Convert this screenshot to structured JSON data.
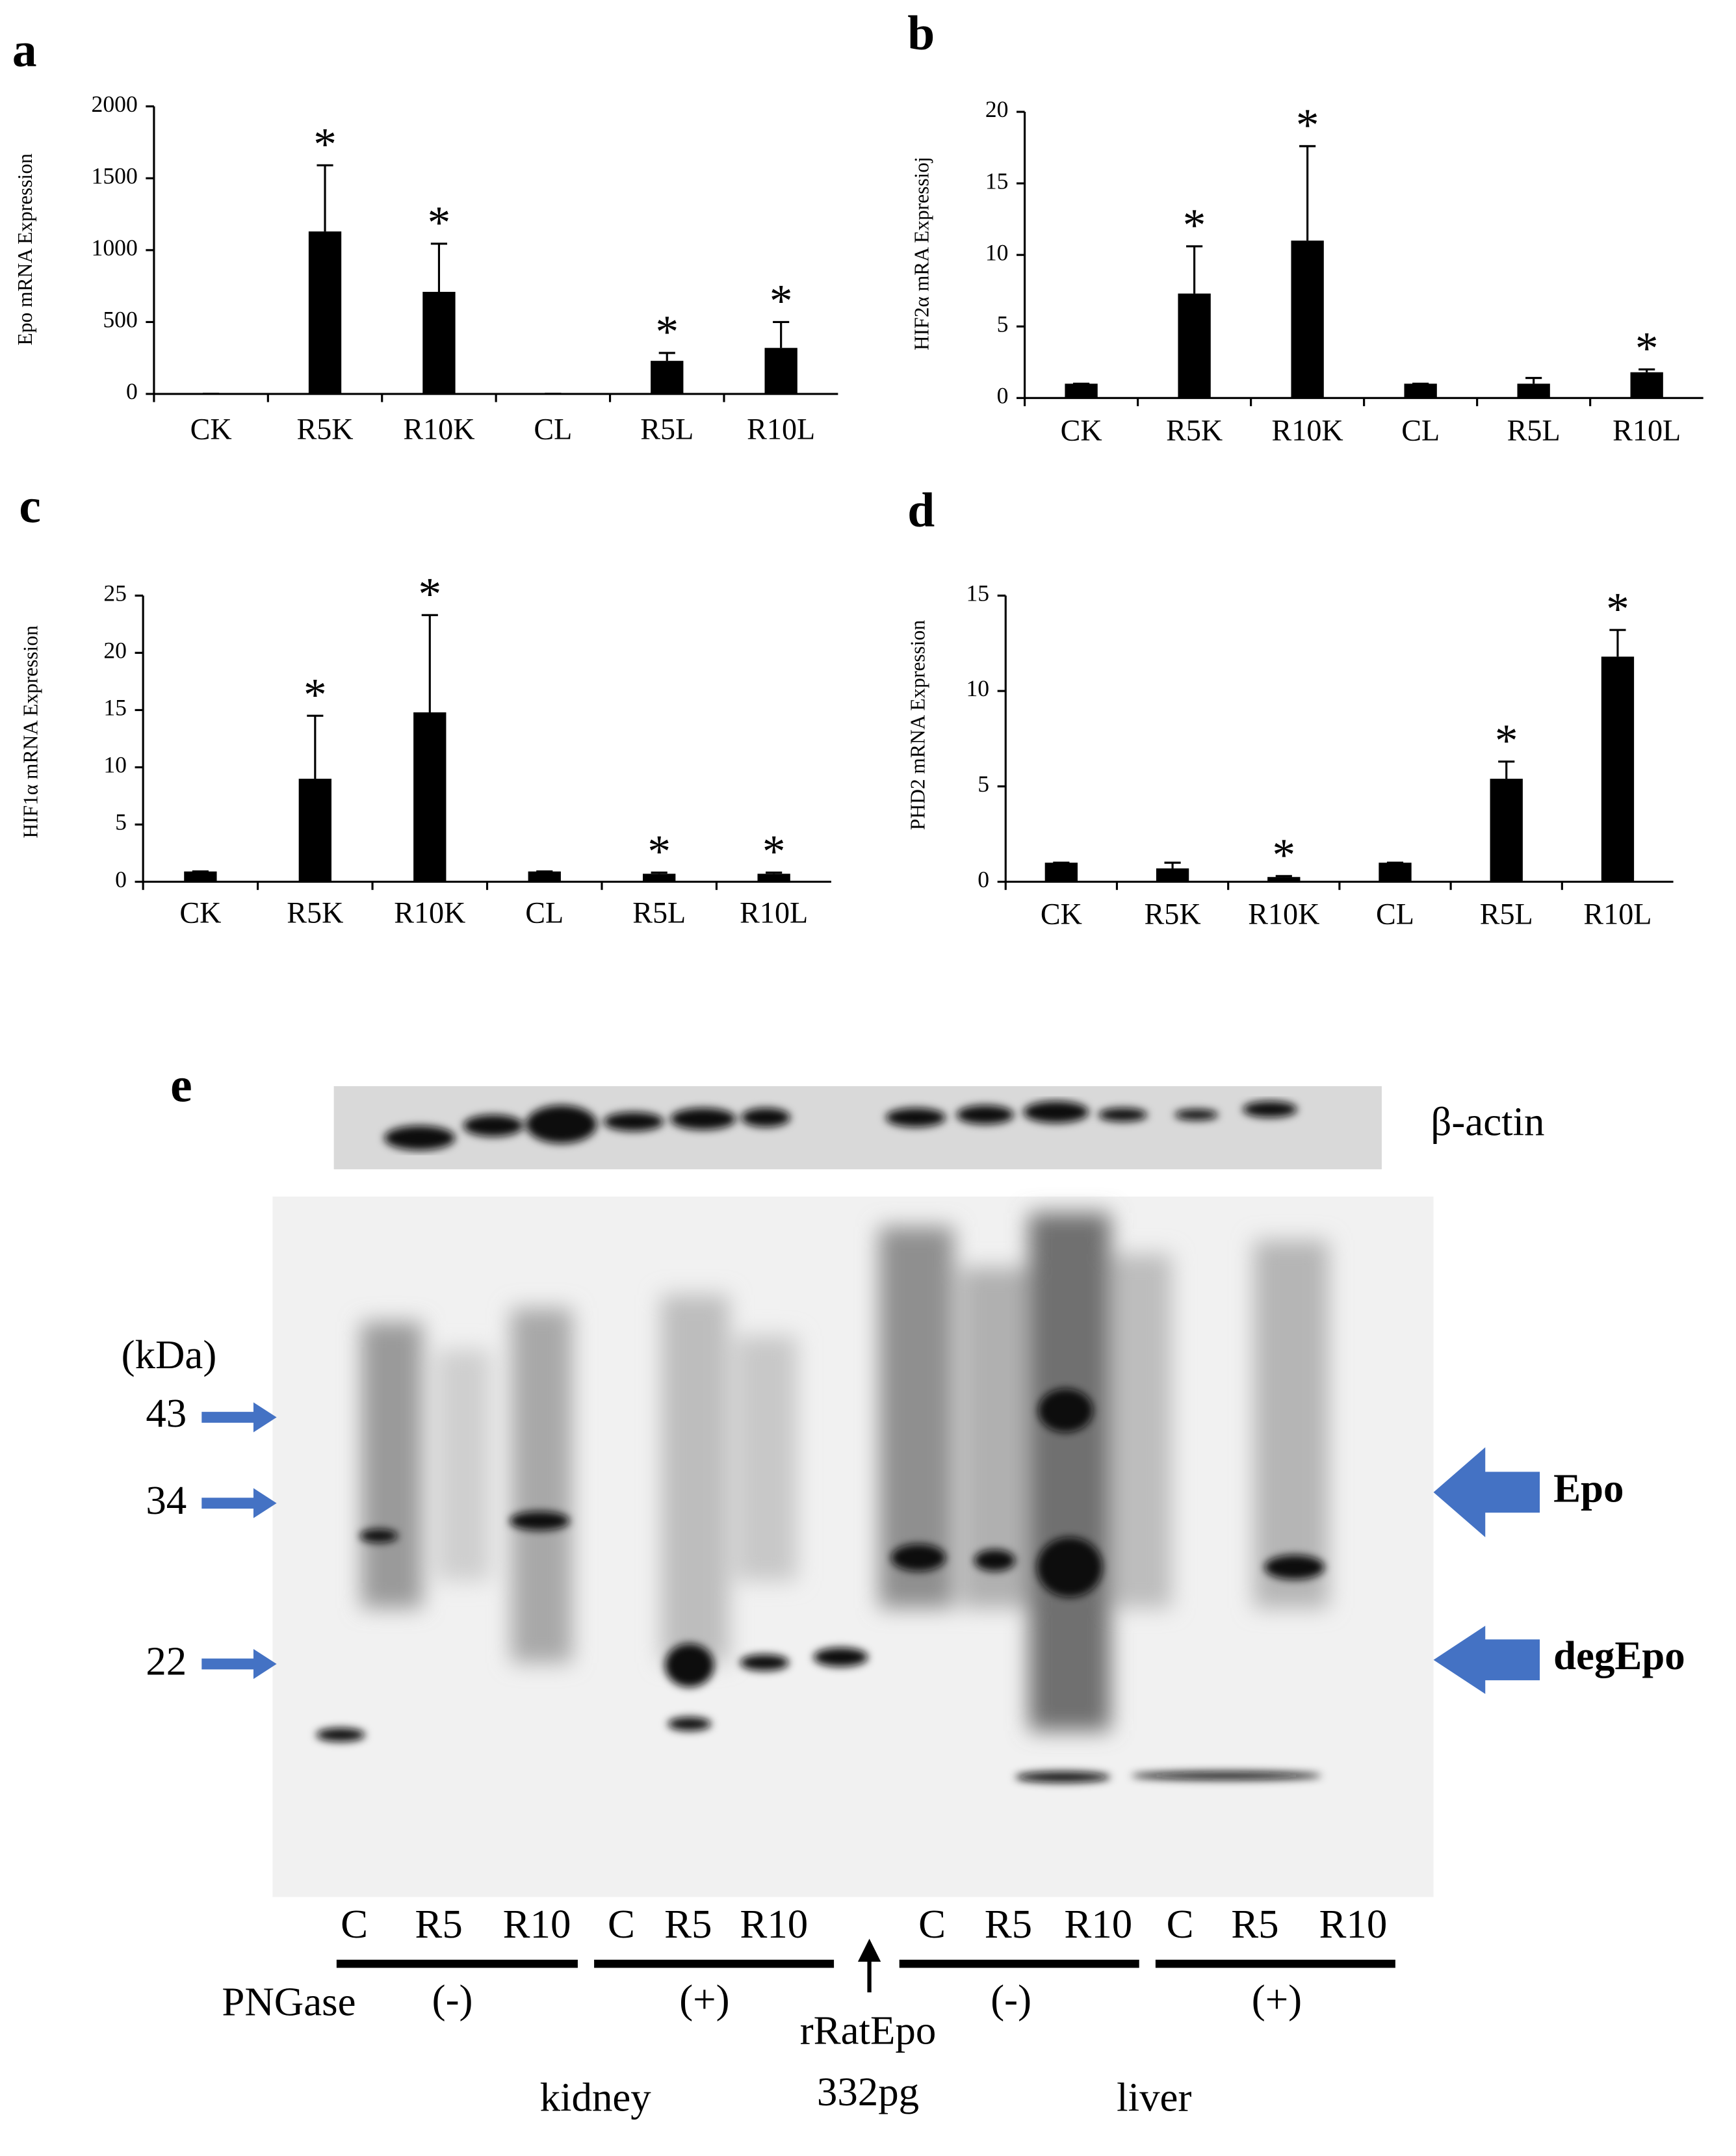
{
  "chart_data": [
    {
      "type": "bar",
      "panel_label": "a",
      "y_label": "Epo mRNA Expression",
      "color": "#000000",
      "categories": [
        "CK",
        "R5K",
        "R10K",
        "CL",
        "R5L",
        "R10L"
      ],
      "values": [
        1,
        1130,
        710,
        1,
        230,
        320
      ],
      "errors": [
        0,
        460,
        335,
        0,
        55,
        180
      ],
      "significance": [
        null,
        "*",
        "*",
        null,
        "*",
        "*"
      ],
      "ylim": [
        0,
        2000
      ],
      "yticks": [
        0,
        500,
        1000,
        1500,
        2000
      ],
      "grid": false
    },
    {
      "type": "bar",
      "panel_label": "b",
      "y_label": "HIF2α mRA Expressioj",
      "color": "#000000",
      "categories": [
        "CK",
        "R5K",
        "R10K",
        "CL",
        "R5L",
        "R10L"
      ],
      "values": [
        1,
        7.3,
        11,
        1,
        1,
        1.8
      ],
      "errors": [
        0,
        3.3,
        6.6,
        0,
        0.4,
        0.2
      ],
      "significance": [
        null,
        "*",
        "*",
        null,
        null,
        "*"
      ],
      "ylim": [
        0,
        20
      ],
      "yticks": [
        0,
        5,
        10,
        15,
        20
      ],
      "grid": false
    },
    {
      "type": "bar",
      "panel_label": "c",
      "y_label": "HIF1α mRNA Expression",
      "color": "#000000",
      "categories": [
        "CK",
        "R5K",
        "R10K",
        "CL",
        "R5L",
        "R10L"
      ],
      "values": [
        0.9,
        9,
        14.8,
        0.9,
        0.7,
        0.7
      ],
      "errors": [
        0,
        5.5,
        8.5,
        0,
        0.1,
        0.1
      ],
      "significance": [
        null,
        "*",
        "*",
        null,
        "*",
        "*"
      ],
      "ylim": [
        0,
        25
      ],
      "yticks": [
        0,
        5,
        10,
        15,
        20,
        25
      ],
      "grid": false
    },
    {
      "type": "bar",
      "panel_label": "d",
      "y_label": "PHD2 mRNA Expression",
      "color": "#000000",
      "categories": [
        "CK",
        "R5K",
        "R10K",
        "CL",
        "R5L",
        "R10L"
      ],
      "values": [
        1,
        0.7,
        0.25,
        1,
        5.4,
        11.8
      ],
      "errors": [
        0,
        0.3,
        0.05,
        0,
        0.9,
        1.4
      ],
      "significance": [
        null,
        null,
        "*",
        null,
        "*",
        "*"
      ],
      "ylim": [
        0,
        15
      ],
      "yticks": [
        0,
        5,
        10,
        15
      ],
      "grid": false
    }
  ],
  "blot": {
    "panel_label": "e",
    "loading_control": "β-actin",
    "size_unit": "(kDa)",
    "markers": [
      43,
      34,
      22
    ],
    "bands": [
      "Epo",
      "degEpo"
    ],
    "lane_groups": [
      {
        "lanes": [
          "C",
          "R5",
          "R10"
        ],
        "treatment": "(-)"
      },
      {
        "lanes": [
          "C",
          "R5",
          "R10"
        ],
        "treatment": "(+)"
      },
      {
        "lanes": [
          "C",
          "R5",
          "R10"
        ],
        "treatment": "(-)"
      },
      {
        "lanes": [
          "C",
          "R5",
          "R10"
        ],
        "treatment": "(+)"
      }
    ],
    "treatment_label": "PNGase",
    "standard": [
      "rRatEpo",
      "332pg"
    ],
    "tissues": [
      "kidney",
      "liver"
    ]
  }
}
